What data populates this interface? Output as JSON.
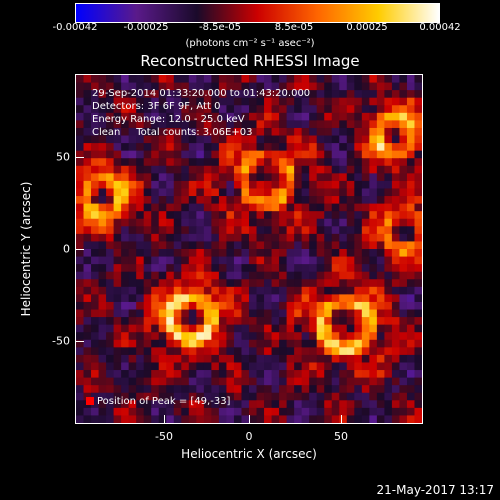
{
  "colorbar": {
    "ticks": [
      "-0.00042",
      "-0.00025",
      "-8.5e-05",
      "8.5e-05",
      "0.00025",
      "0.00042"
    ],
    "unit": "(photons cm⁻² s⁻¹ asec⁻²)"
  },
  "title": "Reconstructed RHESSI Image",
  "annotations": {
    "time": "29-Sep-2014 01:33:20.000 to 01:43:20.000",
    "detectors": "Detectors: 3F 6F 9F, Att 0",
    "energy": "Energy Range: 12.0 - 25.0 keV",
    "clean": "Clean     Total counts: 3.06E+03",
    "peak": "Position of Peak = [49,-33]"
  },
  "axes": {
    "xlabel": "Heliocentric X (arcsec)",
    "ylabel": "Heliocentric Y (arcsec)",
    "xticks": [
      "-50",
      "0",
      "50"
    ],
    "yticks": [
      "50",
      "0",
      "-50"
    ]
  },
  "timestamp": "21-May-2017 13:17",
  "colors": {
    "background": "#000000",
    "colormap": [
      "#0000ff",
      "#5a1a8a",
      "#1a0a2a",
      "#cc0000",
      "#ff6600",
      "#ffcc00",
      "#ffffff"
    ],
    "peak_marker": "#ff0000"
  }
}
